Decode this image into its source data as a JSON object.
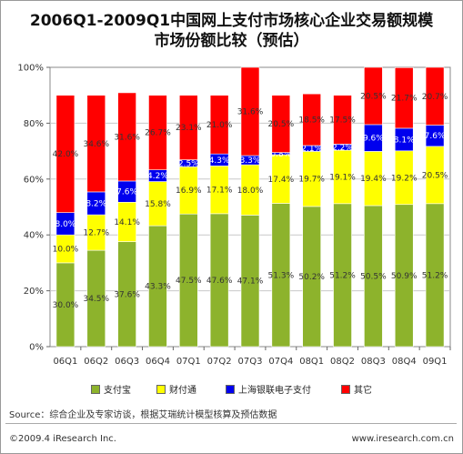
{
  "title_line1": "2006Q1-2009Q1中国网上支付市场核心企业交易额规模",
  "title_line2": "市场份额比较（预估）",
  "source": "Source：综合企业及专家访谈，根据艾瑞统计模型核算及预估数据",
  "copyright": "©2009.4 iResearch Inc.",
  "website": "www.iresearch.com.cn",
  "colors": {
    "alipay": "#8DB32C",
    "tenpay": "#FFFF00",
    "chinapay": "#0000EE",
    "other": "#FF0000"
  },
  "chart_data": {
    "type": "bar",
    "stacked": true,
    "categories": [
      "06Q1",
      "06Q2",
      "06Q3",
      "06Q4",
      "07Q1",
      "07Q2",
      "07Q3",
      "07Q4",
      "08Q1",
      "08Q2",
      "08Q3",
      "08Q4",
      "09Q1"
    ],
    "ylim": [
      0,
      100
    ],
    "yticks": [
      "0%",
      "20%",
      "40%",
      "60%",
      "80%",
      "100%"
    ],
    "series": [
      {
        "name": "支付宝",
        "key": "alipay",
        "values": [
          30.0,
          34.5,
          37.6,
          43.3,
          47.5,
          47.6,
          47.1,
          51.3,
          50.2,
          51.2,
          50.5,
          50.9,
          51.2
        ],
        "labels": [
          "30.0%",
          "34.5%",
          "37.6%",
          "43.3%",
          "47.5%",
          "47.6%",
          "47.1%",
          "51.3%",
          "50.2%",
          "51.2%",
          "50.5%",
          "50.9%",
          "51.2%"
        ]
      },
      {
        "name": "财付通",
        "key": "tenpay",
        "values": [
          10.0,
          12.7,
          14.1,
          15.8,
          16.9,
          17.1,
          18.0,
          17.4,
          19.7,
          19.1,
          19.4,
          19.2,
          20.5
        ],
        "labels": [
          "10.0%",
          "12.7%",
          "14.1%",
          "15.8%",
          "16.9%",
          "17.1%",
          "18.0%",
          "17.4%",
          "19.7%",
          "19.1%",
          "19.4%",
          "19.2%",
          "20.5%"
        ]
      },
      {
        "name": "上海银联电子支付",
        "key": "chinapay",
        "values": [
          8.0,
          8.2,
          7.6,
          4.2,
          2.5,
          4.3,
          3.3,
          0.8,
          2.1,
          2.2,
          9.6,
          8.1,
          7.6
        ],
        "labels": [
          "8.0%",
          "8.2%",
          "7.6%",
          "4.2%",
          "2.5%",
          "4.3%",
          "3.3%",
          "0.8%",
          "2.1%",
          "2.2%",
          "9.6%",
          "8.1%",
          "7.6%"
        ]
      },
      {
        "name": "其它",
        "key": "other",
        "values": [
          42.0,
          34.6,
          31.6,
          26.7,
          23.1,
          21.0,
          31.6,
          20.5,
          18.5,
          17.5,
          20.5,
          21.7,
          20.7
        ],
        "labels": [
          "42.0%",
          "34.6%",
          "31.6%",
          "26.7%",
          "23.1%",
          "21.0%",
          "31.6%",
          "20.5%",
          "18.5%",
          "17.5%",
          "20.5%",
          "21.7%",
          "20.7%"
        ]
      }
    ]
  }
}
